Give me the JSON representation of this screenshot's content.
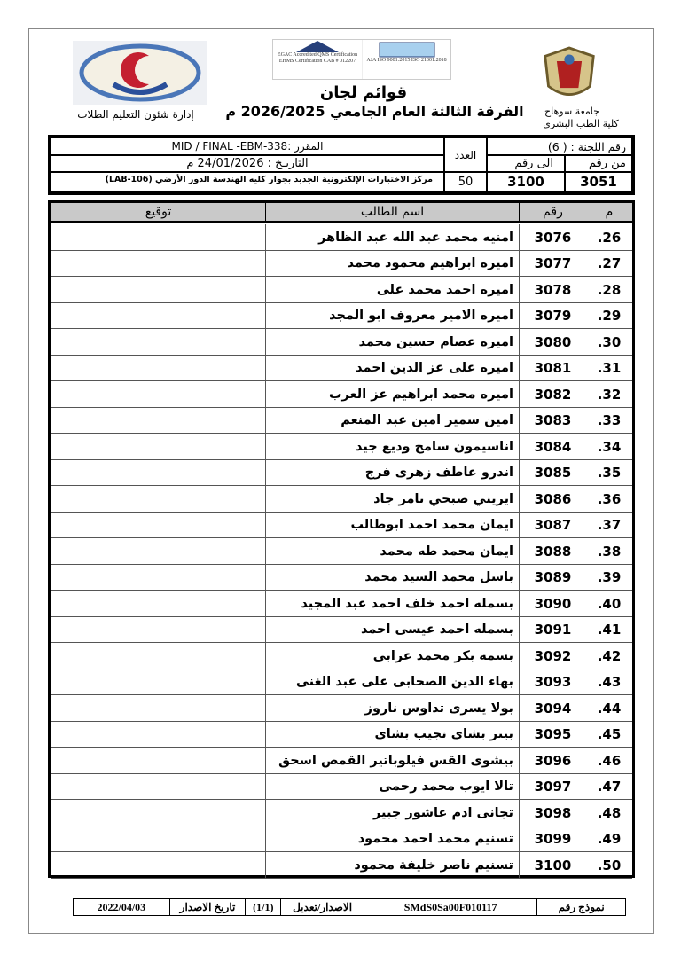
{
  "header": {
    "right_logo": "Sohag University seal",
    "right_line1": "جامعة سوهاج",
    "right_line2": "كلية الطب البشرى",
    "center_title": "قوائم لجان",
    "center_subtitle": "الفرقة الثالثة العام الجامعي 2026/2025 م",
    "accreditation_logo_1": "EGAC Accredited QMS Certification EHMS Certification CAB # 012207",
    "accreditation_logo_2": "AJA ISO 9001:2015 ISO 21001:2018",
    "left_logo": "Faculty of Medicine logo",
    "left_caption": "إدارة شئون التعليم الطلاب"
  },
  "info": {
    "committee_label": "رقم اللجنة : ( 6)",
    "from_label": "من رقم",
    "to_label": "الى رقم",
    "from_value": "3051",
    "to_value": "3100",
    "count_label": "العدد",
    "count_value": "50",
    "course": "المقرر :MID / FINAL -EBM-338",
    "date": "التاريـخ : 24/01/2026 م",
    "location": "مركز الاختبارات الإلكترونية الجديد بجوار كليه الهندسة الدور الأرضي (LAB-106)"
  },
  "table": {
    "headers": {
      "no": "م",
      "code": "رقم",
      "name": "اسم الطالب",
      "signature": "توقيع"
    },
    "rows": [
      {
        "no": "26.",
        "code": "3076",
        "name": "امنيه محمد عبد الله عبد الظاهر"
      },
      {
        "no": "27.",
        "code": "3077",
        "name": "اميره ابراهيم محمود محمد"
      },
      {
        "no": "28.",
        "code": "3078",
        "name": "اميره احمد محمد على"
      },
      {
        "no": "29.",
        "code": "3079",
        "name": "اميره الامير معروف ابو المجد"
      },
      {
        "no": "30.",
        "code": "3080",
        "name": "اميره عصام حسين محمد"
      },
      {
        "no": "31.",
        "code": "3081",
        "name": "اميره على عز الدين احمد"
      },
      {
        "no": "32.",
        "code": "3082",
        "name": "اميره محمد ابراهيم عز العرب"
      },
      {
        "no": "33.",
        "code": "3083",
        "name": "امين سمير امين عبد المنعم"
      },
      {
        "no": "34.",
        "code": "3084",
        "name": "اناسيمون سامح وديع جيد"
      },
      {
        "no": "35.",
        "code": "3085",
        "name": "اندرو عاطف زهرى فرج"
      },
      {
        "no": "36.",
        "code": "3086",
        "name": "ايريني صبحي تامر جاد"
      },
      {
        "no": "37.",
        "code": "3087",
        "name": "ايمان محمد احمد ابوطالب"
      },
      {
        "no": "38.",
        "code": "3088",
        "name": "ايمان محمد طه محمد"
      },
      {
        "no": "39.",
        "code": "3089",
        "name": "باسل محمد السيد محمد"
      },
      {
        "no": "40.",
        "code": "3090",
        "name": "بسمله احمد خلف احمد عبد المجيد"
      },
      {
        "no": "41.",
        "code": "3091",
        "name": "بسمله احمد عيسى احمد"
      },
      {
        "no": "42.",
        "code": "3092",
        "name": "بسمه بكر محمد عرابى"
      },
      {
        "no": "43.",
        "code": "3093",
        "name": "بهاء الدين الصحابى على عبد الغنى"
      },
      {
        "no": "44.",
        "code": "3094",
        "name": "بولا يسرى تداوس ناروز"
      },
      {
        "no": "45.",
        "code": "3095",
        "name": "بيتر بشاى نجيب بشاى"
      },
      {
        "no": "46.",
        "code": "3096",
        "name": "بيشوى القس فيلوباتير القمص اسحق"
      },
      {
        "no": "47.",
        "code": "3097",
        "name": "تالا ايوب محمد رحمى"
      },
      {
        "no": "48.",
        "code": "3098",
        "name": "تجانى ادم عاشور جبير"
      },
      {
        "no": "49.",
        "code": "3099",
        "name": "تسنيم محمد احمد محمود"
      },
      {
        "no": "50.",
        "code": "3100",
        "name": "تسنيم ناصر خليفة محمود"
      }
    ]
  },
  "footer": {
    "form_label": "نموذج رقم",
    "form_value": "SMdS0Sa00F010117",
    "version_label": "الاصدار/تعديل",
    "version_value": "(1/1)",
    "issue_label": "تاريخ الاصدار",
    "issue_value": "2022/04/03"
  }
}
